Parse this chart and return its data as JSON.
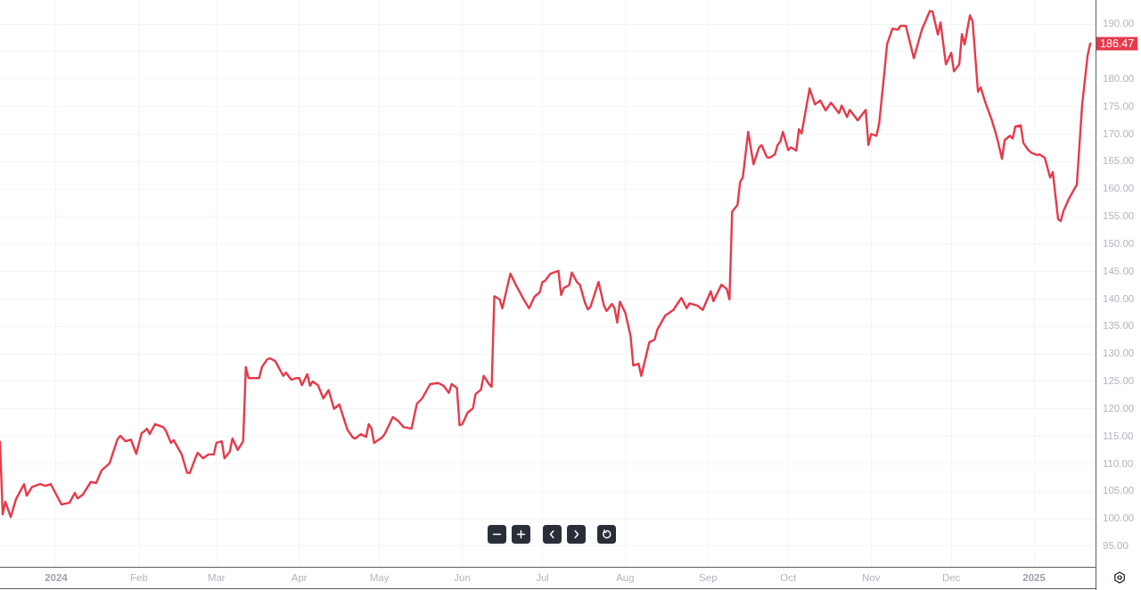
{
  "chart_data": {
    "type": "line",
    "x": [
      "2023-12-11",
      "2023-12-12",
      "2023-12-13",
      "2023-12-15",
      "2023-12-17",
      "2023-12-20",
      "2023-12-21",
      "2023-12-23",
      "2023-12-26",
      "2023-12-28",
      "2023-12-30",
      "2024-01-03",
      "2024-01-06",
      "2024-01-08",
      "2024-01-09",
      "2024-01-11",
      "2024-01-14",
      "2024-01-16",
      "2024-01-18",
      "2024-01-21",
      "2024-01-24",
      "2024-01-25",
      "2024-01-27",
      "2024-01-29",
      "2024-01-31",
      "2024-02-02",
      "2024-02-03",
      "2024-02-04",
      "2024-02-05",
      "2024-02-07",
      "2024-02-10",
      "2024-02-11",
      "2024-02-13",
      "2024-02-14",
      "2024-02-17",
      "2024-02-19",
      "2024-02-20",
      "2024-02-22",
      "2024-02-23",
      "2024-02-25",
      "2024-02-27",
      "2024-02-29",
      "2024-03-01",
      "2024-03-03",
      "2024-03-04",
      "2024-03-06",
      "2024-03-07",
      "2024-03-09",
      "2024-03-11",
      "2024-03-12",
      "2024-03-13",
      "2024-03-17",
      "2024-03-18",
      "2024-03-20",
      "2024-03-21",
      "2024-03-23",
      "2024-03-26",
      "2024-03-27",
      "2024-03-29",
      "2024-03-31",
      "2024-04-01",
      "2024-04-02",
      "2024-04-04",
      "2024-04-05",
      "2024-04-06",
      "2024-04-08",
      "2024-04-10",
      "2024-04-12",
      "2024-04-14",
      "2024-04-16",
      "2024-04-19",
      "2024-04-21",
      "2024-04-22",
      "2024-04-24",
      "2024-04-26",
      "2024-04-27",
      "2024-04-28",
      "2024-04-29",
      "2024-05-02",
      "2024-05-03",
      "2024-05-06",
      "2024-05-08",
      "2024-05-10",
      "2024-05-13",
      "2024-05-15",
      "2024-05-17",
      "2024-05-20",
      "2024-05-23",
      "2024-05-25",
      "2024-05-27",
      "2024-05-28",
      "2024-05-30",
      "2024-05-31",
      "2024-06-01",
      "2024-06-03",
      "2024-06-05",
      "2024-06-06",
      "2024-06-08",
      "2024-06-09",
      "2024-06-11",
      "2024-06-12",
      "2024-06-13",
      "2024-06-15",
      "2024-06-16",
      "2024-06-19",
      "2024-06-21",
      "2024-06-24",
      "2024-06-26",
      "2024-06-28",
      "2024-06-30",
      "2024-07-01",
      "2024-07-02",
      "2024-07-04",
      "2024-07-07",
      "2024-07-08",
      "2024-07-09",
      "2024-07-11",
      "2024-07-12",
      "2024-07-14",
      "2024-07-15",
      "2024-07-17",
      "2024-07-18",
      "2024-07-19",
      "2024-07-22",
      "2024-07-24",
      "2024-07-25",
      "2024-07-27",
      "2024-07-28",
      "2024-07-29",
      "2024-07-30",
      "2024-08-01",
      "2024-08-03",
      "2024-08-04",
      "2024-08-06",
      "2024-08-07",
      "2024-08-10",
      "2024-08-12",
      "2024-08-13",
      "2024-08-16",
      "2024-08-19",
      "2024-08-22",
      "2024-08-24",
      "2024-08-25",
      "2024-08-28",
      "2024-08-30",
      "2024-09-02",
      "2024-09-03",
      "2024-09-06",
      "2024-09-08",
      "2024-09-09",
      "2024-09-10",
      "2024-09-12",
      "2024-09-13",
      "2024-09-14",
      "2024-09-16",
      "2024-09-18",
      "2024-09-20",
      "2024-09-21",
      "2024-09-23",
      "2024-09-24",
      "2024-09-26",
      "2024-09-27",
      "2024-09-28",
      "2024-09-29",
      "2024-10-01",
      "2024-10-02",
      "2024-10-04",
      "2024-10-05",
      "2024-10-06",
      "2024-10-09",
      "2024-10-11",
      "2024-10-13",
      "2024-10-15",
      "2024-10-17",
      "2024-10-20",
      "2024-10-21",
      "2024-10-23",
      "2024-10-24",
      "2024-10-27",
      "2024-10-30",
      "2024-10-31",
      "2024-11-01",
      "2024-11-03",
      "2024-11-04",
      "2024-11-06",
      "2024-11-07",
      "2024-11-09",
      "2024-11-11",
      "2024-11-12",
      "2024-11-14",
      "2024-11-17",
      "2024-11-20",
      "2024-11-23",
      "2024-11-24",
      "2024-11-26",
      "2024-11-27",
      "2024-11-29",
      "2024-12-01",
      "2024-12-02",
      "2024-12-04",
      "2024-12-05",
      "2024-12-06",
      "2024-12-08",
      "2024-12-09",
      "2024-12-11",
      "2024-12-12",
      "2024-12-14",
      "2024-12-16",
      "2024-12-18",
      "2024-12-20",
      "2024-12-21",
      "2024-12-23",
      "2024-12-24",
      "2024-12-25",
      "2024-12-27",
      "2024-12-28",
      "2024-12-30",
      "2024-12-31",
      "2025-01-02",
      "2025-01-03",
      "2025-01-05",
      "2025-01-07",
      "2025-01-08",
      "2025-01-10",
      "2025-01-11",
      "2025-01-12",
      "2025-01-14",
      "2025-01-17",
      "2025-01-19",
      "2025-01-21",
      "2025-01-22"
    ],
    "values": [
      114.0,
      100.8,
      103.1,
      100.3,
      103.6,
      106.3,
      104.2,
      105.8,
      106.3,
      106.0,
      106.3,
      102.6,
      102.9,
      104.7,
      103.7,
      104.4,
      106.7,
      106.5,
      108.8,
      110.1,
      114.5,
      115.1,
      114.1,
      114.4,
      111.8,
      115.6,
      115.9,
      116.4,
      115.4,
      117.2,
      116.7,
      116.1,
      113.8,
      114.3,
      111.7,
      108.4,
      108.3,
      110.9,
      112.0,
      111.0,
      111.7,
      111.7,
      113.8,
      114.1,
      111.0,
      112.2,
      114.6,
      112.5,
      114.1,
      127.6,
      125.6,
      125.6,
      127.6,
      129.0,
      129.2,
      128.7,
      126.0,
      126.6,
      125.3,
      125.6,
      125.6,
      124.3,
      126.3,
      124.2,
      125.0,
      124.3,
      121.9,
      123.4,
      120.0,
      120.8,
      116.2,
      114.8,
      114.6,
      115.4,
      114.9,
      117.2,
      116.5,
      113.8,
      114.8,
      115.4,
      118.5,
      117.8,
      116.7,
      116.4,
      120.9,
      121.9,
      124.5,
      124.7,
      124.2,
      122.9,
      124.5,
      123.8,
      117.0,
      117.2,
      119.3,
      120.1,
      122.7,
      123.5,
      126.0,
      124.5,
      124.0,
      140.5,
      139.9,
      138.3,
      144.6,
      142.6,
      139.9,
      138.3,
      140.4,
      141.2,
      143.1,
      143.3,
      144.6,
      145.1,
      140.7,
      142.0,
      142.5,
      144.8,
      143.0,
      142.6,
      139.2,
      138.1,
      138.6,
      143.1,
      138.8,
      137.8,
      139.1,
      138.3,
      135.7,
      139.5,
      137.5,
      133.2,
      127.9,
      128.2,
      126.0,
      132.1,
      132.6,
      134.4,
      137.0,
      138.0,
      140.2,
      138.3,
      139.2,
      138.8,
      138.0,
      141.4,
      139.6,
      142.6,
      141.8,
      139.9,
      155.9,
      157.1,
      161.3,
      162.1,
      170.4,
      164.5,
      167.5,
      168.0,
      165.8,
      165.7,
      166.3,
      168.0,
      168.6,
      170.4,
      167.1,
      167.6,
      167.0,
      170.9,
      170.1,
      178.3,
      175.4,
      176.1,
      174.3,
      175.7,
      173.8,
      175.2,
      173.1,
      174.4,
      172.5,
      174.4,
      168.0,
      170.0,
      169.7,
      171.8,
      181.4,
      186.4,
      189.2,
      189.0,
      189.7,
      189.7,
      183.8,
      189.0,
      192.4,
      192.3,
      188.1,
      190.3,
      182.7,
      184.8,
      181.4,
      182.7,
      188.2,
      186.3,
      191.6,
      190.5,
      177.7,
      178.5,
      175.4,
      172.8,
      169.6,
      165.5,
      168.9,
      169.7,
      169.2,
      171.4,
      171.6,
      168.4,
      167.0,
      166.6,
      166.2,
      166.3,
      165.7,
      162.1,
      163.1,
      154.5,
      154.2,
      156.0,
      158.2,
      160.8,
      175.4,
      184.2,
      186.47
    ],
    "value_labels": [
      null,
      null,
      null,
      null,
      null,
      null,
      null,
      null,
      null,
      null,
      null,
      null,
      null,
      null,
      null,
      null,
      null,
      null,
      null,
      null,
      null,
      null,
      null,
      null,
      null,
      null,
      null,
      null,
      null,
      null,
      null,
      null,
      null,
      null,
      null,
      null,
      null,
      null,
      null,
      null,
      null,
      null,
      null,
      null,
      null,
      null,
      null,
      null,
      null,
      null,
      null,
      null,
      null,
      null,
      null,
      null,
      null,
      null,
      null,
      null,
      null,
      null,
      null,
      null,
      null,
      null,
      null,
      null,
      null,
      null,
      null,
      null,
      null,
      null,
      null,
      null,
      null,
      null,
      null,
      null,
      null,
      null,
      null,
      null,
      null,
      null,
      null,
      null,
      null,
      null,
      null,
      null,
      null,
      null,
      null,
      null,
      null,
      null,
      null,
      null,
      null,
      null,
      null,
      null,
      null,
      null,
      null,
      null,
      null,
      null,
      null,
      null,
      null,
      null,
      null,
      null,
      null,
      null,
      null,
      null,
      null,
      null,
      null,
      null,
      null,
      null,
      null,
      null,
      null,
      null,
      null,
      null,
      null,
      null,
      null,
      null,
      null,
      null,
      null,
      null,
      null,
      null,
      null,
      null,
      null,
      null,
      null,
      null,
      null,
      null,
      null,
      null,
      null,
      null,
      null,
      null,
      null,
      null,
      null,
      null,
      null,
      null,
      null,
      null,
      null,
      null,
      null,
      null,
      null,
      null,
      null,
      null,
      null,
      null,
      null,
      null,
      null,
      null,
      null,
      null,
      null,
      null,
      null,
      null,
      null,
      null,
      null,
      null,
      null,
      null,
      null,
      null,
      null,
      null,
      null,
      null,
      null,
      null,
      null,
      null,
      null,
      null,
      null,
      null,
      null,
      null,
      null,
      null,
      null,
      null,
      null,
      null,
      null,
      null,
      null,
      null,
      null,
      null,
      null,
      null,
      null,
      null,
      null,
      null,
      null,
      null,
      null,
      null,
      null,
      null,
      "186.47"
    ],
    "color": "#e8394a",
    "xlim": [
      "2023-12-11",
      "2025-01-24"
    ],
    "xticks": [
      {
        "value": "2024-01-01",
        "label": "2024"
      },
      {
        "value": "2024-02-01",
        "label": "Feb"
      },
      {
        "value": "2024-03-01",
        "label": "Mar"
      },
      {
        "value": "2024-04-01",
        "label": "Apr"
      },
      {
        "value": "2024-05-01",
        "label": "May"
      },
      {
        "value": "2024-06-01",
        "label": "Jun"
      },
      {
        "value": "2024-07-01",
        "label": "Jul"
      },
      {
        "value": "2024-08-01",
        "label": "Aug"
      },
      {
        "value": "2024-09-01",
        "label": "Sep"
      },
      {
        "value": "2024-10-01",
        "label": "Oct"
      },
      {
        "value": "2024-11-01",
        "label": "Nov"
      },
      {
        "value": "2024-12-01",
        "label": "Dec"
      },
      {
        "value": "2025-01-01",
        "label": "2025"
      }
    ],
    "ylim": [
      91.25,
      194.4
    ],
    "yticks": [
      {
        "value": 95,
        "label": "95.00"
      },
      {
        "value": 100,
        "label": "100.00"
      },
      {
        "value": 105,
        "label": "105.00"
      },
      {
        "value": 110,
        "label": "110.00"
      },
      {
        "value": 115,
        "label": "115.00"
      },
      {
        "value": 120,
        "label": "120.00"
      },
      {
        "value": 125,
        "label": "125.00"
      },
      {
        "value": 130,
        "label": "130.00"
      },
      {
        "value": 135,
        "label": "135.00"
      },
      {
        "value": 140,
        "label": "140.00"
      },
      {
        "value": 145,
        "label": "145.00"
      },
      {
        "value": 150,
        "label": "150.00"
      },
      {
        "value": 155,
        "label": "155.00"
      },
      {
        "value": 160,
        "label": "160.00"
      },
      {
        "value": 165,
        "label": "165.00"
      },
      {
        "value": 170,
        "label": "170.00"
      },
      {
        "value": 175,
        "label": "175.00"
      },
      {
        "value": 180,
        "label": "180.00"
      },
      {
        "value": 185,
        "label": null
      },
      {
        "value": 190,
        "label": "190.00"
      }
    ],
    "grid": true
  }
}
